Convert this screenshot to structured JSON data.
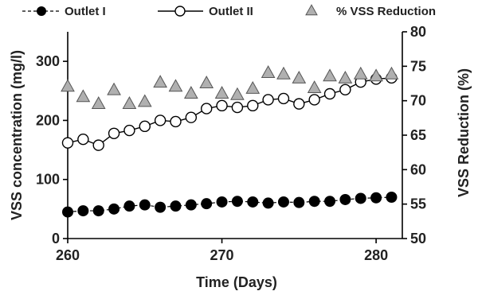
{
  "chart_data": {
    "type": "scatter",
    "xlabel": "Time (Days)",
    "ylabel_left": "VSS concentration (mg/l)",
    "ylabel_right": "VSS Reduction (%)",
    "xlim": [
      260,
      281.7
    ],
    "ylim_left": [
      0,
      350
    ],
    "ylim_right": [
      50,
      80
    ],
    "x_ticks": [
      260,
      270,
      280
    ],
    "y_ticks_left": [
      0,
      100,
      200,
      300
    ],
    "y_ticks_right": [
      50,
      55,
      60,
      65,
      70,
      75,
      80
    ],
    "legend_position": "top",
    "grid": false,
    "series": [
      {
        "name": "Outlet I",
        "axis": "left",
        "style": "line-filled-circle",
        "color": "#000000",
        "x": [
          260,
          261,
          262,
          263,
          264,
          265,
          266,
          267,
          268,
          269,
          270,
          271,
          272,
          273,
          274,
          275,
          276,
          277,
          278,
          279,
          280,
          281
        ],
        "values": [
          45,
          47,
          47,
          50,
          55,
          57,
          53,
          55,
          57,
          59,
          62,
          63,
          62,
          60,
          62,
          61,
          63,
          63,
          66,
          68,
          69,
          70
        ]
      },
      {
        "name": "Outlet II",
        "axis": "left",
        "style": "line-open-circle",
        "color": "#000000",
        "x": [
          260,
          261,
          262,
          263,
          264,
          265,
          266,
          267,
          268,
          269,
          270,
          271,
          272,
          273,
          274,
          275,
          276,
          277,
          278,
          279,
          280,
          281
        ],
        "values": [
          162,
          168,
          158,
          178,
          183,
          190,
          200,
          198,
          205,
          220,
          225,
          222,
          225,
          235,
          237,
          228,
          235,
          245,
          252,
          265,
          270,
          272
        ]
      },
      {
        "name": "% VSS Reduction",
        "axis": "right",
        "style": "gray-triangle",
        "color": "#b0b0b0",
        "x": [
          260,
          261,
          262,
          263,
          264,
          265,
          266,
          267,
          268,
          269,
          270,
          271,
          272,
          273,
          274,
          275,
          276,
          277,
          278,
          279,
          280,
          281
        ],
        "values": [
          72.0,
          70.5,
          69.5,
          71.5,
          69.5,
          69.8,
          72.6,
          72.0,
          71.0,
          72.5,
          71.0,
          70.8,
          71.7,
          74.0,
          73.8,
          73.2,
          71.8,
          73.5,
          73.2,
          73.8,
          73.5,
          73.8
        ]
      }
    ]
  }
}
